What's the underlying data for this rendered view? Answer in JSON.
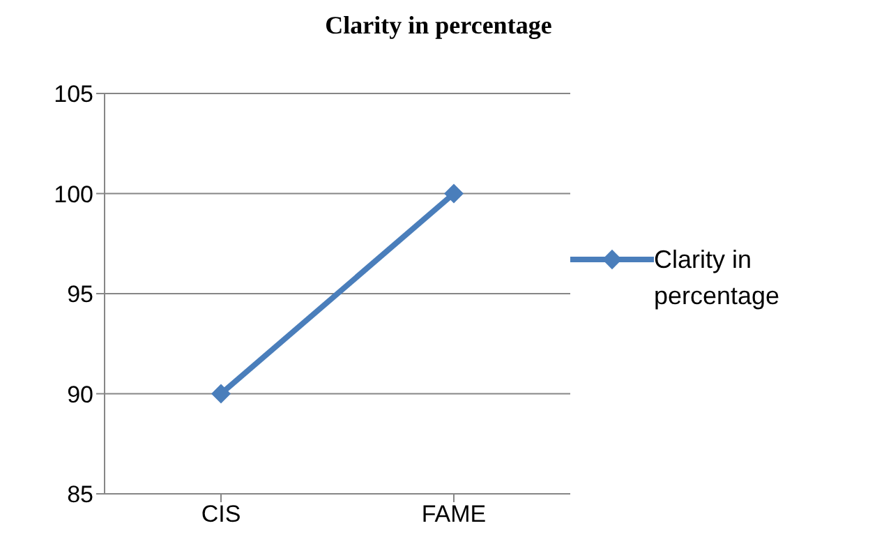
{
  "chart_data": {
    "type": "line",
    "title": "Clarity in percentage",
    "categories": [
      "CIS",
      "FAME"
    ],
    "series": [
      {
        "name": "Clarity in percentage",
        "color": "#4a7ebb",
        "values": [
          90,
          100
        ]
      }
    ],
    "ylim": [
      85,
      105
    ],
    "yticks": [
      85,
      90,
      95,
      100,
      105
    ],
    "grid": "y",
    "legend": "right",
    "marker": "diamond",
    "line_style": "solid"
  }
}
